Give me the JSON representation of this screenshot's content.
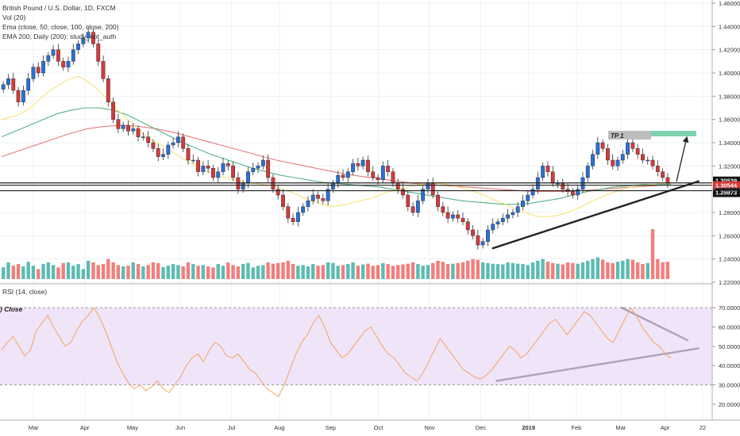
{
  "chart_title": "British Pound / U.S. Dollar, 1D, FXCM",
  "legend": {
    "vol": "Vol (20)",
    "ema_line": "Ema (close, 50, close, 100, close, 200)",
    "ema200_line": "EMA 200; Daily (200): study_not_auth"
  },
  "rsi_title": "RSI (14, close)",
  "rsi_overlay_label": ") Close",
  "tp_label": "TP 1",
  "price_badges": [
    "1.30539",
    "1.30544",
    "1.29873"
  ],
  "colors": {
    "up": "#26a69a",
    "down": "#ef5350",
    "candle_up_fill": "#2a6fd6",
    "candle_down_fill": "#d23b3b",
    "ema50": "#f5e170",
    "ema100": "#4caf80",
    "ema200": "#e57373",
    "rsi_line": "#f4a460",
    "rsi_band": "#e9d8f7",
    "trendline": "#222222",
    "tp_bar": "#7dd3b0"
  },
  "chart_data": {
    "type": "candlestick",
    "price_axis": {
      "ticks": [
        "1.46000",
        "1.44000",
        "1.42000",
        "1.40000",
        "1.38000",
        "1.36000",
        "1.34000",
        "1.32000",
        "1.30000",
        "1.28000",
        "1.26000",
        "1.24000",
        "1.22000"
      ],
      "range": [
        1.22,
        1.46
      ]
    },
    "rsi_axis": {
      "ticks": [
        "70.0000",
        "60.0000",
        "50.0000",
        "40.0000",
        "30.0000",
        "20.0000"
      ],
      "range": [
        15,
        75
      ],
      "overbought": 70,
      "oversold": 30
    },
    "time_axis": {
      "labels": [
        "Mar",
        "Apr",
        "May",
        "Jun",
        "Jul",
        "Aug",
        "Sep",
        "Oct",
        "Nov",
        "Dec",
        "2019",
        "Feb",
        "Mar",
        "Apr",
        "22"
      ]
    },
    "series_points": [
      1.39,
      1.395,
      1.385,
      1.375,
      1.385,
      1.395,
      1.405,
      1.4,
      1.41,
      1.415,
      1.42,
      1.41,
      1.405,
      1.41,
      1.42,
      1.425,
      1.43,
      1.435,
      1.425,
      1.41,
      1.395,
      1.375,
      1.36,
      1.352,
      1.355,
      1.35,
      1.352,
      1.345,
      1.345,
      1.34,
      1.335,
      1.328,
      1.33,
      1.338,
      1.34,
      1.345,
      1.335,
      1.325,
      1.325,
      1.315,
      1.32,
      1.318,
      1.31,
      1.315,
      1.322,
      1.32,
      1.31,
      1.3,
      1.305,
      1.315,
      1.318,
      1.32,
      1.325,
      1.31,
      1.3,
      1.295,
      1.285,
      1.275,
      1.272,
      1.28,
      1.285,
      1.29,
      1.295,
      1.292,
      1.29,
      1.3,
      1.305,
      1.312,
      1.31,
      1.315,
      1.322,
      1.32,
      1.325,
      1.315,
      1.31,
      1.308,
      1.32,
      1.315,
      1.305,
      1.3,
      1.295,
      1.285,
      1.28,
      1.29,
      1.3,
      1.305,
      1.295,
      1.285,
      1.28,
      1.275,
      1.278,
      1.275,
      1.272,
      1.265,
      1.26,
      1.252,
      1.255,
      1.265,
      1.27,
      1.272,
      1.275,
      1.278,
      1.28,
      1.285,
      1.29,
      1.295,
      1.3,
      1.31,
      1.32,
      1.315,
      1.305,
      1.305,
      1.3,
      1.298,
      1.295,
      1.3,
      1.31,
      1.32,
      1.33,
      1.34,
      1.335,
      1.325,
      1.32,
      1.325,
      1.33,
      1.34,
      1.335,
      1.33,
      1.325,
      1.325,
      1.32,
      1.315,
      1.31,
      1.305
    ],
    "volumes": [
      0.35,
      0.5,
      0.4,
      0.45,
      0.38,
      0.52,
      0.4,
      0.3,
      0.45,
      0.5,
      0.42,
      0.35,
      0.48,
      0.5,
      0.4,
      0.45,
      0.3,
      0.55,
      0.5,
      0.42,
      0.45,
      0.6,
      0.5,
      0.42,
      0.38,
      0.4,
      0.5,
      0.45,
      0.38,
      0.42,
      0.5,
      0.48,
      0.36,
      0.4,
      0.45,
      0.42,
      0.38,
      0.5,
      0.45,
      0.4,
      0.42,
      0.38,
      0.35,
      0.45,
      0.4,
      0.5,
      0.42,
      0.38,
      0.45,
      0.48,
      0.35,
      0.4,
      0.42,
      0.5,
      0.46,
      0.48,
      0.5,
      0.55,
      0.45,
      0.4,
      0.42,
      0.38,
      0.45,
      0.4,
      0.42,
      0.5,
      0.48,
      0.4,
      0.42,
      0.45,
      0.5,
      0.4,
      0.44,
      0.46,
      0.4,
      0.42,
      0.48,
      0.45,
      0.4,
      0.42,
      0.44,
      0.46,
      0.5,
      0.45,
      0.4,
      0.42,
      0.48,
      0.55,
      0.52,
      0.45,
      0.46,
      0.48,
      0.5,
      0.55,
      0.6,
      0.58,
      0.5,
      0.48,
      0.46,
      0.45,
      0.44,
      0.5,
      0.48,
      0.46,
      0.45,
      0.42,
      0.5,
      0.55,
      0.6,
      0.52,
      0.48,
      0.46,
      0.44,
      0.5,
      0.48,
      0.46,
      0.5,
      0.55,
      0.6,
      0.65,
      0.58,
      0.5,
      0.48,
      0.52,
      0.55,
      0.6,
      0.58,
      0.5,
      0.45,
      0.48,
      1.5,
      0.6,
      0.5,
      0.52
    ],
    "ema50_points": [
      1.36,
      1.362,
      1.365,
      1.37,
      1.378,
      1.385,
      1.39,
      1.395,
      1.397,
      1.392,
      1.385,
      1.377,
      1.368,
      1.36,
      1.352,
      1.345,
      1.34,
      1.335,
      1.33,
      1.325,
      1.32,
      1.316,
      1.313,
      1.31,
      1.308,
      1.306,
      1.305,
      1.304,
      1.303,
      1.3,
      1.297,
      1.293,
      1.29,
      1.287,
      1.285,
      1.286,
      1.288,
      1.29,
      1.292,
      1.295,
      1.298,
      1.3,
      1.302,
      1.304,
      1.305,
      1.305,
      1.304,
      1.302,
      1.3,
      1.297,
      1.294,
      1.29,
      1.287,
      1.283,
      1.28,
      1.277,
      1.276,
      1.277,
      1.279,
      1.282,
      1.286,
      1.29,
      1.294,
      1.297,
      1.3,
      1.302,
      1.303,
      1.304,
      1.305,
      1.305
    ],
    "ema100_points": [
      1.345,
      1.35,
      1.355,
      1.36,
      1.365,
      1.368,
      1.37,
      1.37,
      1.368,
      1.364,
      1.358,
      1.352,
      1.346,
      1.34,
      1.335,
      1.33,
      1.326,
      1.322,
      1.318,
      1.315,
      1.312,
      1.31,
      1.308,
      1.306,
      1.305,
      1.304,
      1.303,
      1.302,
      1.3,
      1.298,
      1.296,
      1.294,
      1.292,
      1.29,
      1.289,
      1.288,
      1.287,
      1.287,
      1.288,
      1.29,
      1.292,
      1.295,
      1.298,
      1.3,
      1.302,
      1.303,
      1.304,
      1.304,
      1.304
    ],
    "ema200_points": [
      1.328,
      1.333,
      1.338,
      1.343,
      1.348,
      1.352,
      1.354,
      1.355,
      1.354,
      1.352,
      1.349,
      1.345,
      1.341,
      1.337,
      1.333,
      1.329,
      1.325,
      1.322,
      1.319,
      1.316,
      1.313,
      1.311,
      1.309,
      1.307,
      1.305,
      1.304,
      1.303,
      1.302,
      1.301,
      1.3,
      1.299,
      1.298,
      1.298,
      1.298,
      1.299,
      1.3,
      1.301,
      1.302,
      1.303,
      1.304
    ],
    "rsi_points": [
      48,
      52,
      55,
      50,
      45,
      48,
      58,
      62,
      66,
      60,
      55,
      50,
      52,
      58,
      63,
      66,
      70,
      65,
      58,
      50,
      42,
      36,
      31,
      28,
      30,
      27,
      29,
      32,
      28,
      26,
      30,
      34,
      40,
      44,
      46,
      42,
      48,
      52,
      50,
      45,
      44,
      46,
      42,
      38,
      36,
      32,
      28,
      26,
      24,
      30,
      38,
      46,
      52,
      56,
      62,
      66,
      60,
      52,
      48,
      44,
      46,
      50,
      54,
      58,
      60,
      55,
      50,
      46,
      44,
      40,
      36,
      34,
      32,
      36,
      42,
      48,
      54,
      50,
      46,
      42,
      38,
      36,
      34,
      33,
      35,
      38,
      42,
      46,
      50,
      48,
      44,
      46,
      50,
      54,
      58,
      62,
      64,
      60,
      56,
      60,
      64,
      68,
      66,
      62,
      58,
      54,
      52,
      58,
      64,
      70,
      66,
      60,
      56,
      52,
      50,
      46,
      44
    ],
    "annotations": {
      "tp_label": "TP 1",
      "horizontal_levels": [
        1.3054,
        1.3034,
        1.2987
      ],
      "price_trendline": [
        [
          0.665,
          1.249
        ],
        [
          0.945,
          1.307
        ]
      ],
      "rsi_support_line": [
        [
          0.67,
          32
        ],
        [
          0.945,
          49
        ]
      ],
      "rsi_resistance_line": [
        [
          0.84,
          70
        ],
        [
          0.93,
          53
        ]
      ]
    }
  }
}
